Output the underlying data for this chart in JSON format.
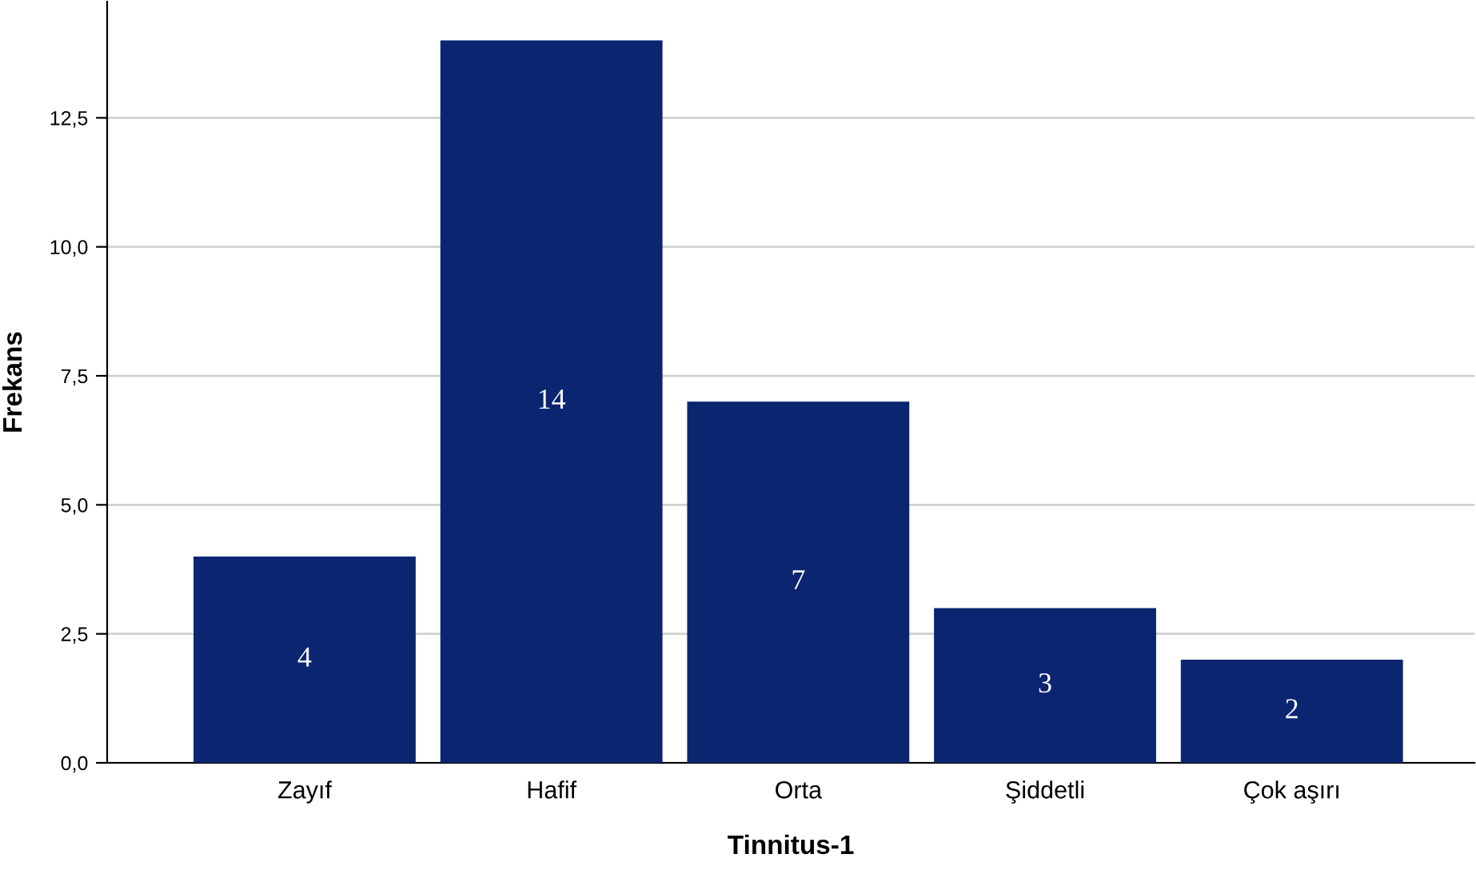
{
  "chart_data": {
    "type": "bar",
    "xlabel": "Tinnitus-1",
    "ylabel": "Frekans",
    "categories": [
      "Zayıf",
      "Hafif",
      "Orta",
      "Şiddetli",
      "Çok aşırı"
    ],
    "values": [
      4,
      14,
      7,
      3,
      2
    ],
    "color": "#0b2570",
    "data_labels": true,
    "ylim": [
      0,
      14.75
    ],
    "yticks": [
      {
        "value": 0,
        "label": "0,0"
      },
      {
        "value": 2.5,
        "label": "2,5"
      },
      {
        "value": 5,
        "label": "5,0"
      },
      {
        "value": 7.5,
        "label": "7,5"
      },
      {
        "value": 10,
        "label": "10,0"
      },
      {
        "value": 12.5,
        "label": "12,5"
      }
    ],
    "grid": "y",
    "legend": false
  }
}
